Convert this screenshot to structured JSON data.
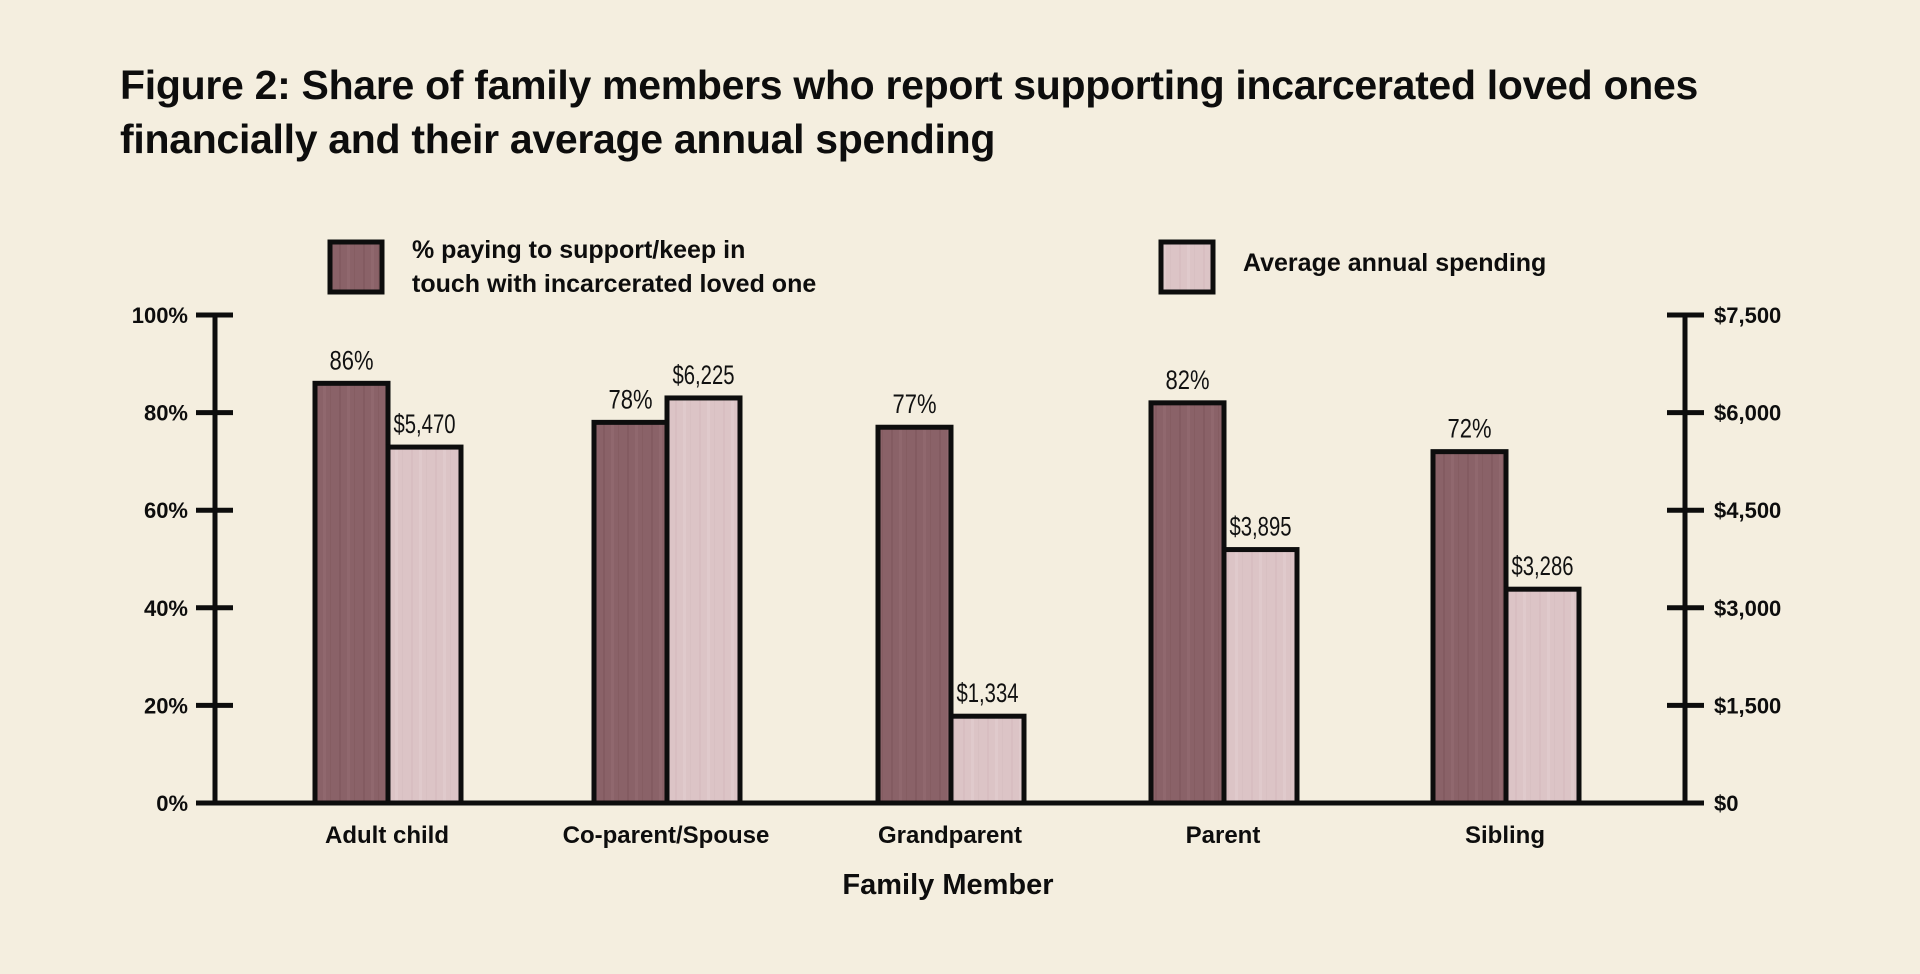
{
  "title": "Figure 2: Share of family members who report supporting incarcerated loved ones financially and their average annual spending",
  "colors": {
    "background": "#f4eedf",
    "percent_bar": "#8a6268",
    "spending_bar": "#dcc4c6",
    "outline": "#0d0d0d"
  },
  "chart_data": {
    "type": "bar",
    "title": "Figure 2: Share of family members who report supporting incarcerated loved ones financially and their average annual spending",
    "xlabel": "Family Member",
    "ylabel": "",
    "y2label": "",
    "categories": [
      "Adult child",
      "Co-parent/Spouse",
      "Grandparent",
      "Parent",
      "Sibling"
    ],
    "series": [
      {
        "name": "% paying to support/keep in touch with incarcerated loved one",
        "legend_lines": [
          "% paying to support/keep in",
          "touch with incarcerated loved one"
        ],
        "axis": "left",
        "values": [
          86,
          78,
          77,
          82,
          72
        ],
        "labels": [
          "86%",
          "78%",
          "77%",
          "82%",
          "72%"
        ]
      },
      {
        "name": "Average annual spending",
        "legend_lines": [
          "Average annual spending"
        ],
        "axis": "right",
        "values": [
          5470,
          6225,
          1334,
          3895,
          3286
        ],
        "labels": [
          "$5,470",
          "$6,225",
          "$1,334",
          "$3,895",
          "$3,286"
        ]
      }
    ],
    "ylim": [
      0,
      100
    ],
    "y2lim": [
      0,
      7500
    ],
    "yticks": [
      0,
      20,
      40,
      60,
      80,
      100
    ],
    "ytick_labels": [
      "0%",
      "20%",
      "40%",
      "60%",
      "80%",
      "100%"
    ],
    "y2ticks": [
      0,
      1500,
      3000,
      4500,
      6000,
      7500
    ],
    "y2tick_labels": [
      "$0",
      "$1,500",
      "$3,000",
      "$4,500",
      "$6,000",
      "$7,500"
    ],
    "grid": false,
    "legend_position": "top"
  }
}
